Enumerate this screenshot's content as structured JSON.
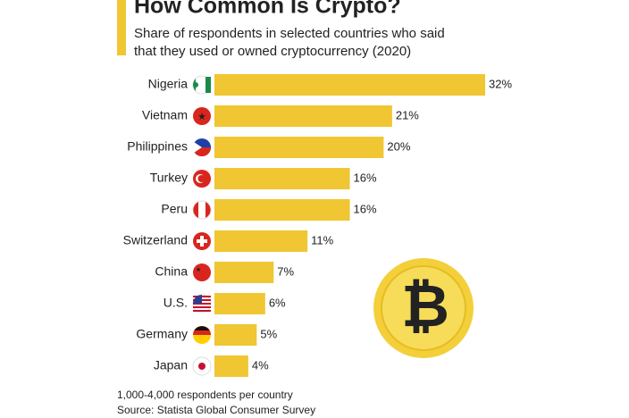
{
  "chart_data": {
    "type": "bar",
    "orientation": "horizontal",
    "title": "How Common Is Crypto?",
    "subtitle": [
      "Share of respondents in selected countries who said",
      "that they used or owned cryptocurrency (2020)"
    ],
    "categories": [
      "Nigeria",
      "Vietnam",
      "Philippines",
      "Turkey",
      "Peru",
      "Switzerland",
      "China",
      "U.S.",
      "Germany",
      "Japan"
    ],
    "values": [
      32,
      21,
      20,
      16,
      16,
      11,
      7,
      6,
      5,
      4
    ],
    "value_labels": [
      "32%",
      "21%",
      "20%",
      "16%",
      "16%",
      "11%",
      "7%",
      "6%",
      "5%",
      "4%"
    ],
    "color": "#f0c632",
    "notes": [
      "1,000-4,000 respondents per country",
      "Source: Statista Global Consumer Survey"
    ]
  }
}
